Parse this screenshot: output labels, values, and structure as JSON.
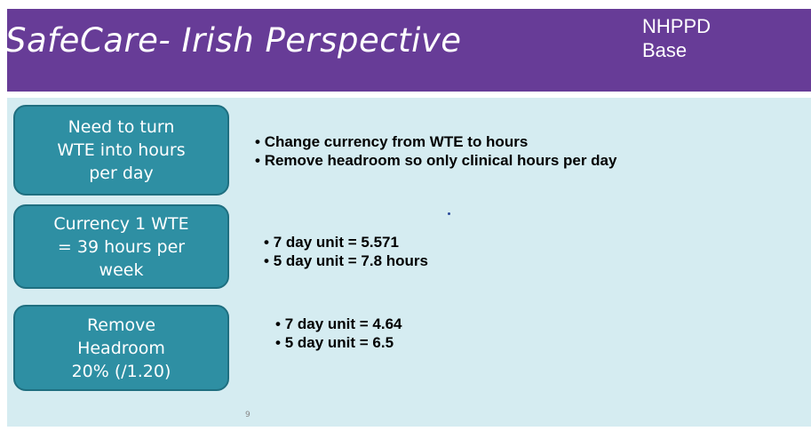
{
  "header": {
    "title": "SafeCare- Irish Perspective",
    "subtitle": [
      "NHPPD",
      "Base"
    ]
  },
  "rows": [
    {
      "box": [
        "Need to turn",
        "WTE into hours",
        "per day"
      ],
      "bullets": [
        "Change currency from WTE to hours",
        "Remove headroom so only clinical hours per day"
      ]
    },
    {
      "box": [
        "Currency 1 WTE",
        "= 39 hours per",
        "week"
      ],
      "bullets": [
        "7 day unit =  5.571",
        "5 day unit =  7.8 hours"
      ]
    },
    {
      "box": [
        "Remove",
        "Headroom",
        "20%  (/1.20)"
      ],
      "bullets": [
        "7 day unit = 4.64",
        "5 day unit = 6.5"
      ]
    }
  ],
  "page_number": "9"
}
